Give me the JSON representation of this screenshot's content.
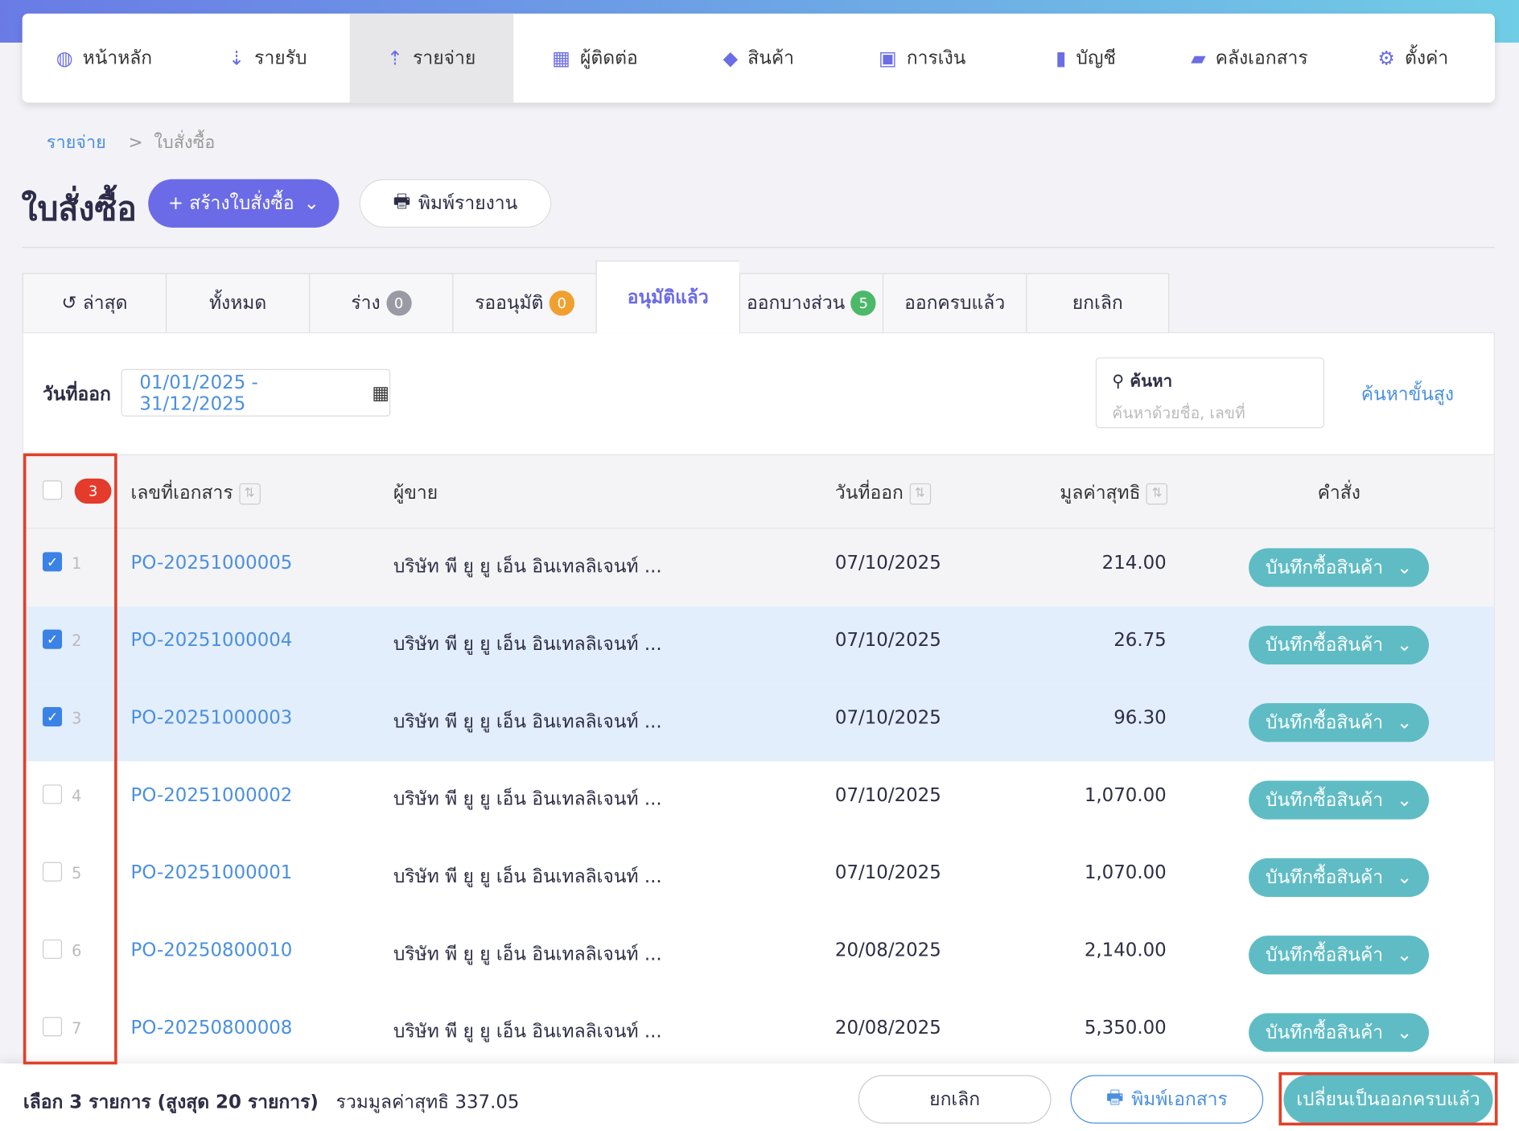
{
  "nav": [
    {
      "icon": "dashboard-icon",
      "glyph": "◍",
      "label": "หน้าหลัก"
    },
    {
      "icon": "income-icon",
      "glyph": "⇣",
      "label": "รายรับ"
    },
    {
      "icon": "expense-icon",
      "glyph": "⇡",
      "label": "รายจ่าย",
      "active": true
    },
    {
      "icon": "contacts-icon",
      "glyph": "▦",
      "label": "ผู้ติดต่อ"
    },
    {
      "icon": "product-box-icon",
      "glyph": "◆",
      "label": "สินค้า"
    },
    {
      "icon": "money-icon",
      "glyph": "▣",
      "label": "การเงิน"
    },
    {
      "icon": "account-book-icon",
      "glyph": "▮",
      "label": "บัญชี"
    },
    {
      "icon": "folder-icon",
      "glyph": "▰",
      "label": "คลังเอกสาร"
    },
    {
      "icon": "gear-icon",
      "glyph": "⚙",
      "label": "ตั้งค่า"
    }
  ],
  "breadcrumb": {
    "parent": "รายจ่าย",
    "sep": ">",
    "current": "ใบสั่งซื้อ"
  },
  "page_title": "ใบสั่งซื้อ",
  "create_button": "+  สร้างใบสั่งซื้อ",
  "print_report_button": "พิมพ์รายงาน",
  "tabs": [
    {
      "label": "ล่าสุด"
    },
    {
      "label": "ทั้งหมด"
    },
    {
      "label": "ร่าง",
      "count": "0",
      "color": "#9a9aa5"
    },
    {
      "label": "รออนุมัติ",
      "count": "0",
      "color": "#f0a030"
    },
    {
      "label": "อนุมัติแล้ว",
      "active": true
    },
    {
      "label": "ออกบางส่วน",
      "count": "5",
      "color": "#4cb86a"
    },
    {
      "label": "ออกครบแล้ว"
    },
    {
      "label": "ยกเลิก"
    }
  ],
  "filter": {
    "label": "วันที่ออก",
    "date_range": "01/01/2025 - 31/12/2025",
    "search_label": "ค้นหา",
    "search_placeholder": "ค้นหาด้วยชื่อ, เลขที่",
    "advanced": "ค้นหาขั้นสูง"
  },
  "table": {
    "selected_count": "3",
    "headers": {
      "doc_no": "เลขที่เอกสาร",
      "vendor": "ผู้ขาย",
      "date": "วันที่ออก",
      "net": "มูลค่าสุทธิ",
      "action": "คำสั่ง"
    },
    "rows": [
      {
        "n": "1",
        "doc": "PO-20251000005",
        "vendor": "บริษัท พี ยู ยู เอ็น อินเทลลิเจนท์ ...",
        "date": "07/10/2025",
        "net": "214.00",
        "checked": true
      },
      {
        "n": "2",
        "doc": "PO-20251000004",
        "vendor": "บริษัท พี ยู ยู เอ็น อินเทลลิเจนท์ ...",
        "date": "07/10/2025",
        "net": "26.75",
        "checked": true
      },
      {
        "n": "3",
        "doc": "PO-20251000003",
        "vendor": "บริษัท พี ยู ยู เอ็น อินเทลลิเจนท์ ...",
        "date": "07/10/2025",
        "net": "96.30",
        "checked": true
      },
      {
        "n": "4",
        "doc": "PO-20251000002",
        "vendor": "บริษัท พี ยู ยู เอ็น อินเทลลิเจนท์ ...",
        "date": "07/10/2025",
        "net": "1,070.00",
        "checked": false
      },
      {
        "n": "5",
        "doc": "PO-20251000001",
        "vendor": "บริษัท พี ยู ยู เอ็น อินเทลลิเจนท์ ...",
        "date": "07/10/2025",
        "net": "1,070.00",
        "checked": false
      },
      {
        "n": "6",
        "doc": "PO-20250800010",
        "vendor": "บริษัท พี ยู ยู เอ็น อินเทลลิเจนท์ ...",
        "date": "20/08/2025",
        "net": "2,140.00",
        "checked": false
      },
      {
        "n": "7",
        "doc": "PO-20250800008",
        "vendor": "บริษัท พี ยู ยู เอ็น อินเทลลิเจนท์ ...",
        "date": "20/08/2025",
        "net": "5,350.00",
        "checked": false
      }
    ],
    "action_label": "บันทึกซื้อสินค้า"
  },
  "bottom": {
    "selected": "เลือก 3 รายการ (สูงสุด 20 รายการ)",
    "total": "รวมมูลค่าสุทธิ 337.05",
    "cancel": "ยกเลิก",
    "print": "พิมพ์เอกสาร",
    "convert": "เปลี่ยนเป็นออกครบแล้ว"
  }
}
